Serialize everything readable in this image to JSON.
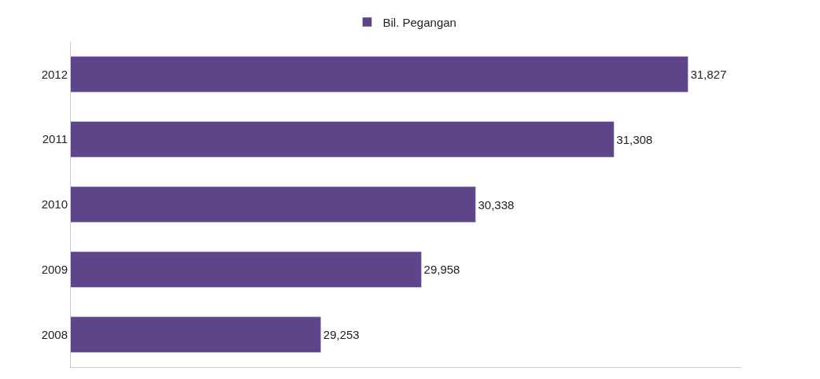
{
  "chart_data": {
    "type": "bar",
    "orientation": "horizontal",
    "categories": [
      "2012",
      "2011",
      "2010",
      "2009",
      "2008"
    ],
    "series": [
      {
        "name": "Bil. Pegangan",
        "color": "#5e4488",
        "values": [
          31827,
          31308,
          30338,
          29958,
          29253
        ],
        "value_labels": [
          "31,827",
          "31,308",
          "30,338",
          "29,958",
          "29,253"
        ]
      }
    ],
    "xlim": [
      27500,
      32200
    ],
    "tick_labels": "y",
    "legend": "top"
  }
}
